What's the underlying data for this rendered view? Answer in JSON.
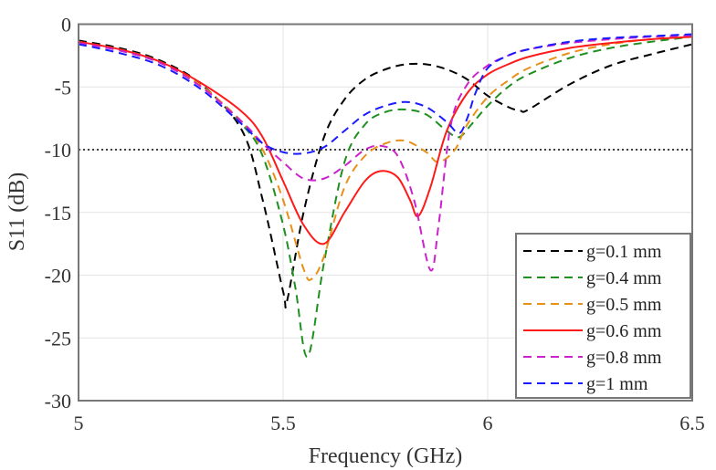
{
  "chart_data": {
    "type": "line",
    "title": "",
    "xlabel": "Frequency (GHz)",
    "ylabel": "S11 (dB)",
    "xlim": [
      5,
      6.5
    ],
    "ylim": [
      -30,
      0
    ],
    "xticks": [
      "5",
      "5.5",
      "6",
      "6.5"
    ],
    "xtick_values": [
      5,
      5.5,
      6,
      6.5
    ],
    "yticks": [
      "0",
      "-5",
      "-10",
      "-15",
      "-20",
      "-25",
      "-30"
    ],
    "ytick_values": [
      0,
      -5,
      -10,
      -15,
      -20,
      -25,
      -30
    ],
    "grid": true,
    "legend_placement": "bottom-right",
    "reference_line": {
      "y": -10,
      "style": "dotted",
      "color": "#000000"
    },
    "series": [
      {
        "name": "g=0.1 mm",
        "color": "#000000",
        "dash": true,
        "x": [
          5,
          5.1,
          5.2,
          5.3,
          5.4,
          5.45,
          5.5,
          5.51,
          5.55,
          5.6,
          5.65,
          5.7,
          5.75,
          5.8,
          5.85,
          5.9,
          5.95,
          6.0,
          6.05,
          6.08,
          6.1,
          6.2,
          6.3,
          6.4,
          6.5
        ],
        "y": [
          -1.3,
          -1.9,
          -2.9,
          -4.8,
          -8.5,
          -14,
          -21.3,
          -22,
          -15,
          -9,
          -6,
          -4.4,
          -3.6,
          -3.2,
          -3.2,
          -3.6,
          -4.4,
          -5.7,
          -6.6,
          -6.9,
          -6.8,
          -4.8,
          -3.3,
          -2.4,
          -1.6
        ]
      },
      {
        "name": "g=0.4 mm",
        "color": "#1f8f1f",
        "dash": true,
        "x": [
          5,
          5.1,
          5.2,
          5.3,
          5.4,
          5.45,
          5.5,
          5.53,
          5.56,
          5.6,
          5.65,
          5.7,
          5.75,
          5.8,
          5.85,
          5.9,
          5.93,
          5.96,
          6.0,
          6.05,
          6.1,
          6.2,
          6.3,
          6.4,
          6.5
        ],
        "y": [
          -1.4,
          -2,
          -3,
          -4.9,
          -8,
          -10.5,
          -16,
          -21,
          -26.5,
          -19,
          -11,
          -8,
          -7,
          -6.8,
          -7.2,
          -8.5,
          -9,
          -8,
          -6.5,
          -5,
          -4,
          -2.7,
          -1.9,
          -1.4,
          -1.0
        ]
      },
      {
        "name": "g=0.5 mm",
        "color": "#e8901a",
        "dash": true,
        "x": [
          5,
          5.1,
          5.2,
          5.3,
          5.4,
          5.45,
          5.5,
          5.55,
          5.57,
          5.6,
          5.65,
          5.7,
          5.75,
          5.8,
          5.85,
          5.88,
          5.92,
          5.95,
          6.0,
          6.05,
          6.1,
          6.2,
          6.3,
          6.4,
          6.5
        ],
        "y": [
          -1.4,
          -2,
          -3,
          -4.9,
          -7.8,
          -10,
          -14,
          -19.5,
          -20.3,
          -18.5,
          -13,
          -10.5,
          -9.5,
          -9.3,
          -10.2,
          -11,
          -10,
          -8,
          -5.8,
          -4.5,
          -3.5,
          -2.3,
          -1.6,
          -1.2,
          -1.0
        ]
      },
      {
        "name": "g=0.6 mm",
        "color": "#ff1a1a",
        "dash": false,
        "x": [
          5,
          5.1,
          5.2,
          5.3,
          5.4,
          5.45,
          5.5,
          5.55,
          5.6,
          5.65,
          5.7,
          5.74,
          5.78,
          5.81,
          5.83,
          5.86,
          5.9,
          5.95,
          6.0,
          6.05,
          6.1,
          6.2,
          6.3,
          6.4,
          6.5
        ],
        "y": [
          -1.4,
          -2,
          -3,
          -4.7,
          -7,
          -9,
          -12.5,
          -16,
          -17.5,
          -15,
          -12.5,
          -11.7,
          -12.2,
          -14,
          -15.3,
          -13,
          -8.5,
          -5.5,
          -4,
          -3.2,
          -2.6,
          -1.9,
          -1.5,
          -1.2,
          -1.0
        ]
      },
      {
        "name": "g=0.8 mm",
        "color": "#cc22cc",
        "dash": true,
        "x": [
          5,
          5.1,
          5.2,
          5.3,
          5.4,
          5.45,
          5.5,
          5.55,
          5.6,
          5.65,
          5.7,
          5.74,
          5.78,
          5.82,
          5.86,
          5.88,
          5.91,
          5.95,
          6.0,
          6.05,
          6.1,
          6.2,
          6.3,
          6.4,
          6.5
        ],
        "y": [
          -1.5,
          -2.1,
          -3.1,
          -5,
          -7.8,
          -9.5,
          -11,
          -12.3,
          -12.3,
          -11.3,
          -10,
          -9.7,
          -10.5,
          -14,
          -19.6,
          -16,
          -8,
          -4.8,
          -3.3,
          -2.5,
          -2,
          -1.5,
          -1.2,
          -1.0,
          -0.9
        ]
      },
      {
        "name": "g=1 mm",
        "color": "#1a1aff",
        "dash": true,
        "x": [
          5,
          5.1,
          5.2,
          5.3,
          5.4,
          5.45,
          5.5,
          5.55,
          5.6,
          5.65,
          5.7,
          5.75,
          5.8,
          5.85,
          5.9,
          5.93,
          5.95,
          5.97,
          6.0,
          6.05,
          6.1,
          6.2,
          6.3,
          6.4,
          6.5
        ],
        "y": [
          -1.6,
          -2.3,
          -3.3,
          -5.2,
          -8,
          -9.5,
          -10.2,
          -10.3,
          -9.8,
          -8.5,
          -7.2,
          -6.5,
          -6.2,
          -6.6,
          -7.8,
          -8.7,
          -7.5,
          -5.5,
          -3.5,
          -2.5,
          -2,
          -1.4,
          -1.1,
          -0.95,
          -0.8
        ]
      }
    ]
  }
}
